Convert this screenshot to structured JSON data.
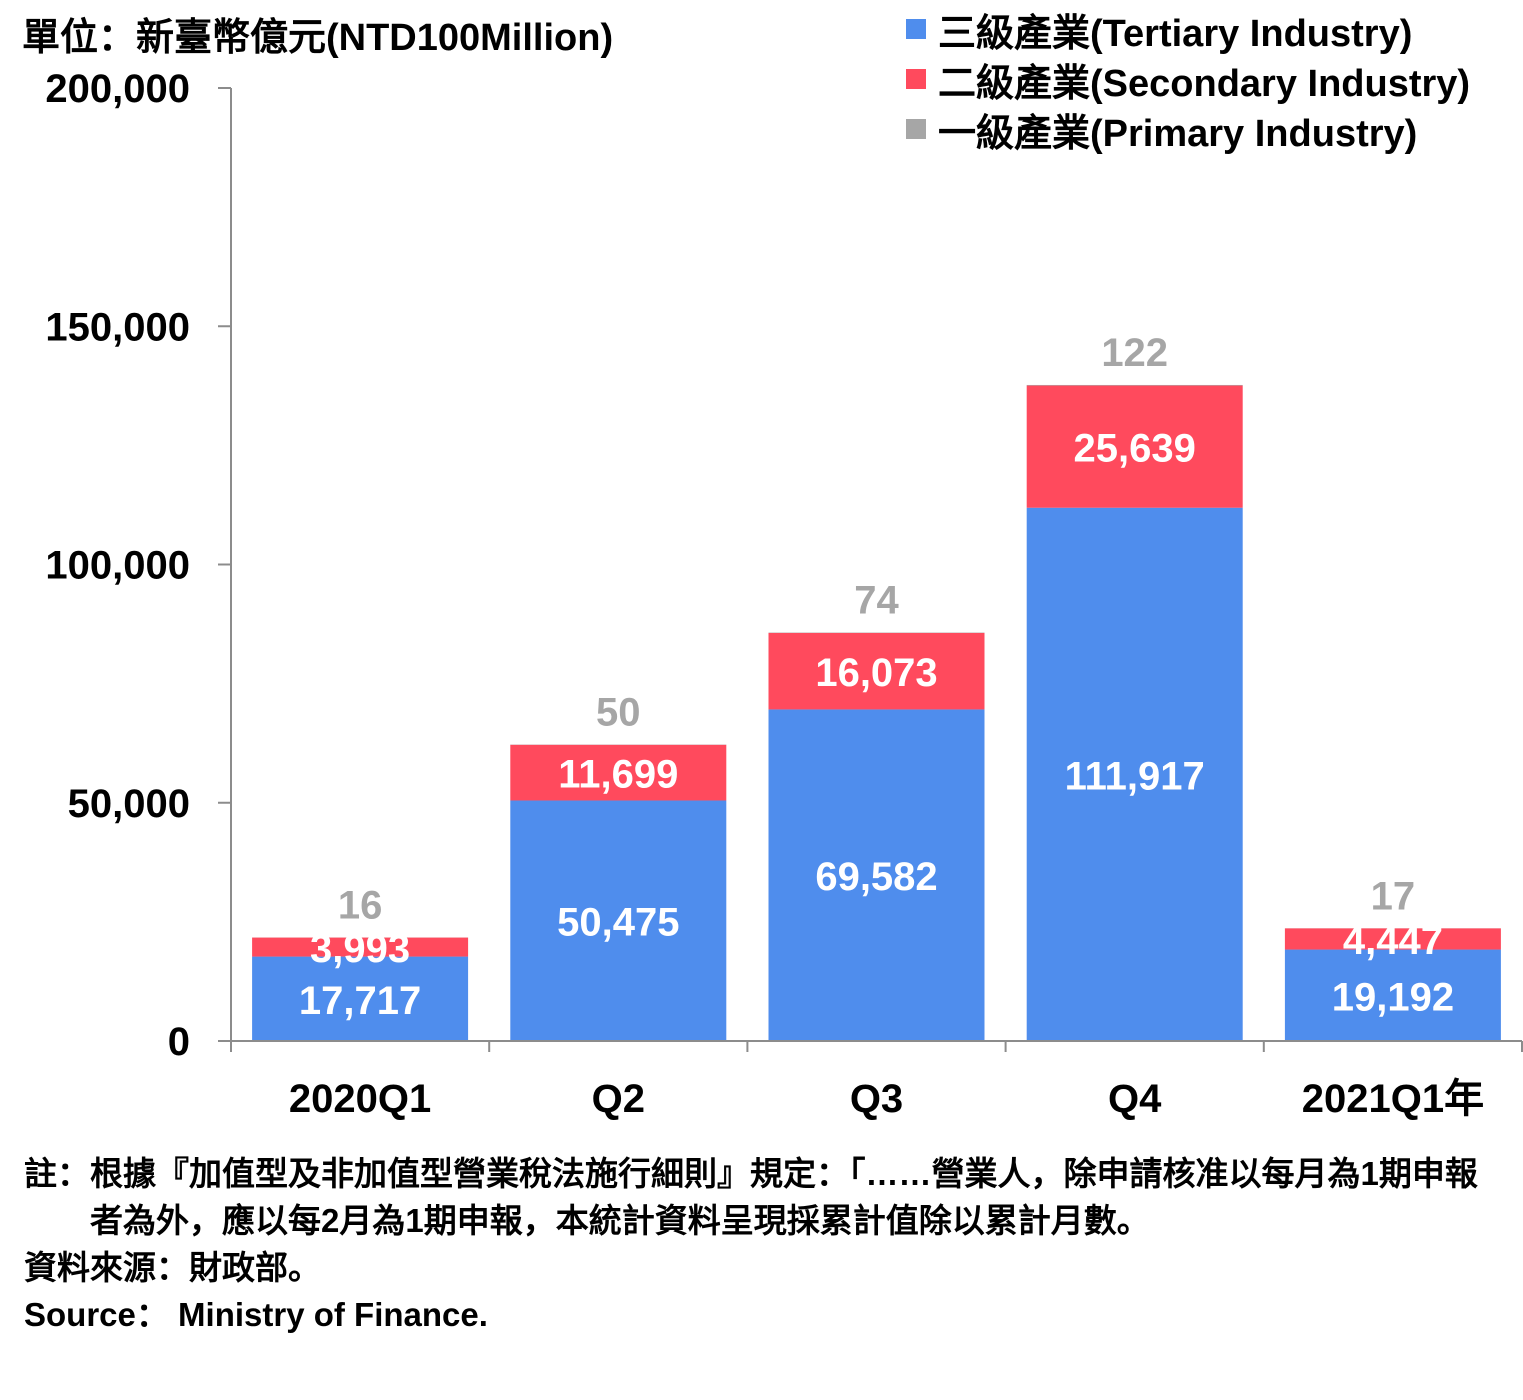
{
  "unit_label": "單位：新臺幣億元(NTD100Million)",
  "legend": [
    {
      "label": "三級產業(Tertiary Industry)",
      "color": "#4f8ded"
    },
    {
      "label": "二級產業(Secondary Industry)",
      "color": "#ff4a5d"
    },
    {
      "label": "一級產業(Primary Industry)",
      "color": "#a6a6a6"
    }
  ],
  "chart_data": {
    "type": "bar",
    "stacked": true,
    "categories": [
      "2020Q1",
      "Q2",
      "Q3",
      "Q4",
      "2021Q1年"
    ],
    "series": [
      {
        "name": "三級產業(Tertiary Industry)",
        "color": "#4f8ded",
        "values": [
          17717,
          50475,
          69582,
          111917,
          19192
        ],
        "labels": [
          "17,717",
          "50,475",
          "69,582",
          "111,917",
          "19,192"
        ]
      },
      {
        "name": "二級產業(Secondary Industry)",
        "color": "#ff4a5d",
        "values": [
          3993,
          11699,
          16073,
          25639,
          4447
        ],
        "labels": [
          "3,993",
          "11,699",
          "16,073",
          "25,639",
          "4,447"
        ]
      },
      {
        "name": "一級產業(Primary Industry)",
        "color": "#a6a6a6",
        "values": [
          16,
          50,
          74,
          122,
          17
        ],
        "labels": [
          "16",
          "50",
          "74",
          "122",
          "17"
        ]
      }
    ],
    "ylim": [
      0,
      200000
    ],
    "yticks": [
      0,
      50000,
      100000,
      150000,
      200000
    ],
    "ytick_labels": [
      "0",
      "50,000",
      "100,000",
      "150,000",
      "200,000"
    ],
    "grid": false,
    "legend_position": "top-right"
  },
  "notes": {
    "note_prefix": "註：",
    "note_text": "根據『加值型及非加值型營業稅法施行細則』規定：「……營業人，除申請核准以每月為1期申報者為外，應以每2月為1期申報，本統計資料呈現採累計值除以累計月數。",
    "source_zh": "資料來源：財政部。",
    "source_en": "Source： Ministry of Finance."
  }
}
